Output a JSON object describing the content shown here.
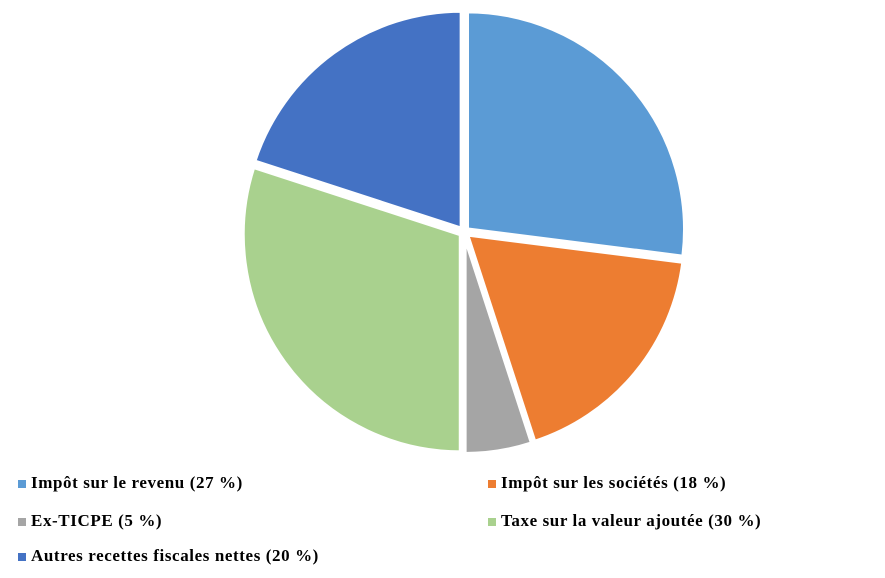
{
  "chart_data": {
    "type": "pie",
    "categories": [
      "Impôt sur le revenu (27 %)",
      "Impôt sur les sociétés (18 %)",
      "Ex-TICPE (5 %)",
      "Taxe sur la valeur ajoutée (30 %)",
      "Autres recettes fiscales nettes (20 %)"
    ],
    "values": [
      27,
      18,
      5,
      30,
      20
    ],
    "colors": [
      "#5b9bd5",
      "#ed7d31",
      "#a5a5a5",
      "#a9d18e",
      "#4472c4"
    ]
  }
}
